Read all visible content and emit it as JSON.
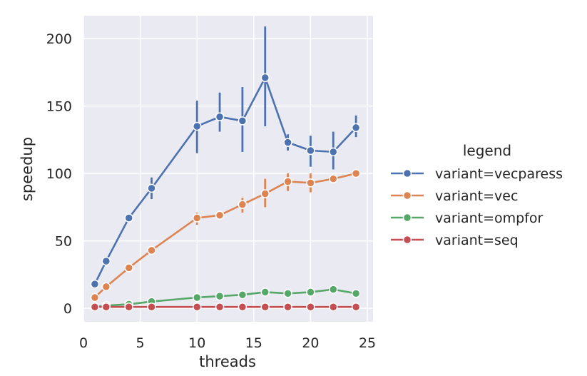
{
  "chart_data": {
    "type": "line",
    "title": "",
    "xlabel": "threads",
    "ylabel": "speedup",
    "xlim": [
      0,
      25.5
    ],
    "ylim": [
      -10,
      217
    ],
    "xticks": [
      0,
      5,
      10,
      15,
      20,
      25
    ],
    "yticks": [
      0,
      50,
      100,
      150,
      200
    ],
    "grid": true,
    "legend": {
      "title": "legend",
      "placement": "right"
    },
    "x": [
      1,
      2,
      4,
      6,
      10,
      12,
      14,
      16,
      18,
      20,
      22,
      24
    ],
    "series": [
      {
        "name": "variant=vecparess",
        "color": "#4c72b0",
        "values": [
          18,
          35,
          67,
          89,
          135,
          142,
          139,
          171,
          123,
          117,
          116,
          134
        ],
        "err_low": [
          18,
          35,
          67,
          81,
          115,
          131,
          116,
          135,
          117,
          105,
          103,
          127
        ],
        "err_high": [
          18,
          35,
          67,
          97,
          154,
          160,
          164,
          209,
          129,
          128,
          131,
          143
        ]
      },
      {
        "name": "variant=vec",
        "color": "#dd8452",
        "values": [
          8,
          16,
          30,
          43,
          67,
          69,
          77,
          85,
          94,
          93,
          96,
          100
        ],
        "err_low": [
          8,
          16,
          30,
          43,
          62,
          69,
          71,
          75,
          87,
          86,
          95,
          100
        ],
        "err_high": [
          8,
          16,
          30,
          43,
          71,
          69,
          82,
          96,
          100,
          100,
          97,
          100
        ]
      },
      {
        "name": "variant=ompfor",
        "color": "#55a868",
        "values": [
          1,
          2,
          3,
          5,
          8,
          9,
          10,
          12,
          11,
          12,
          14,
          11
        ],
        "err_low": [
          1,
          2,
          3,
          5,
          8,
          9,
          10,
          11,
          11,
          12,
          14,
          11
        ],
        "err_high": [
          1,
          2,
          3,
          5,
          8,
          9,
          10,
          12,
          12,
          12,
          14,
          11
        ]
      },
      {
        "name": "variant=seq",
        "color": "#c44e52",
        "values": [
          1,
          1,
          1,
          1,
          1,
          1,
          1,
          1,
          1,
          1,
          1,
          1
        ],
        "err_low": [
          1,
          1,
          1,
          1,
          1,
          1,
          1,
          1,
          1,
          1,
          1,
          1
        ],
        "err_high": [
          1,
          1,
          1,
          1,
          1,
          1,
          1,
          1,
          1,
          1,
          1,
          1
        ]
      }
    ]
  }
}
